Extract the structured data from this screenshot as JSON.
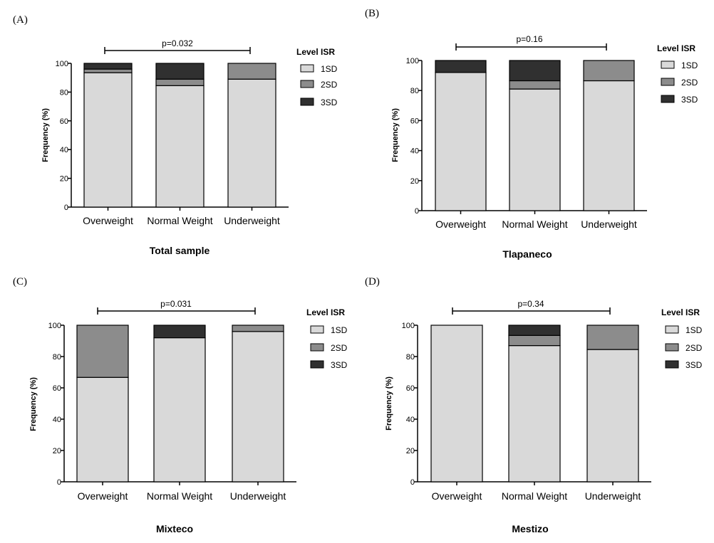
{
  "colors": {
    "1SD": "#d9d9d9",
    "2SD": "#8c8c8c",
    "3SD": "#303030",
    "axis": "#000000"
  },
  "chart_data": [
    {
      "type": "bar",
      "stacked": true,
      "panel": "(A)",
      "title": "Total sample",
      "ylabel": "Frequency (%)",
      "ylim": [
        0,
        100
      ],
      "yticks": [
        0,
        20,
        40,
        60,
        80,
        100
      ],
      "categories": [
        "Overweight",
        "Normal Weight",
        "Underweight"
      ],
      "legend_title": "Level ISR",
      "annotation": "p=0.032",
      "series": [
        {
          "name": "1SD",
          "values": [
            93.5,
            84.5,
            89
          ]
        },
        {
          "name": "2SD",
          "values": [
            2.5,
            4.5,
            11
          ]
        },
        {
          "name": "3SD",
          "values": [
            4,
            11,
            0
          ]
        }
      ]
    },
    {
      "type": "bar",
      "stacked": true,
      "panel": "(B)",
      "title": "Tlapaneco",
      "ylabel": "Frequency (%)",
      "ylim": [
        0,
        100
      ],
      "yticks": [
        0,
        20,
        40,
        60,
        80,
        100
      ],
      "categories": [
        "Overweight",
        "Normal Weight",
        "Underweight"
      ],
      "legend_title": "Level ISR",
      "annotation": "p=0.16",
      "series": [
        {
          "name": "1SD",
          "values": [
            92,
            81,
            86.5
          ]
        },
        {
          "name": "2SD",
          "values": [
            0,
            5.5,
            13.5
          ]
        },
        {
          "name": "3SD",
          "values": [
            8,
            13.5,
            0
          ]
        }
      ]
    },
    {
      "type": "bar",
      "stacked": true,
      "panel": "(C)",
      "title": "Mixteco",
      "ylabel": "Frequency (%)",
      "ylim": [
        0,
        100
      ],
      "yticks": [
        0,
        20,
        40,
        60,
        80,
        100
      ],
      "categories": [
        "Overweight",
        "Normal Weight",
        "Underweight"
      ],
      "legend_title": "Level ISR",
      "annotation": "p=0.031",
      "series": [
        {
          "name": "1SD",
          "values": [
            66.7,
            92,
            96
          ]
        },
        {
          "name": "2SD",
          "values": [
            33.3,
            0,
            4
          ]
        },
        {
          "name": "3SD",
          "values": [
            0,
            8,
            0
          ]
        }
      ]
    },
    {
      "type": "bar",
      "stacked": true,
      "panel": "(D)",
      "title": "Mestizo",
      "ylabel": "Frequency (%)",
      "ylim": [
        0,
        100
      ],
      "yticks": [
        0,
        20,
        40,
        60,
        80,
        100
      ],
      "categories": [
        "Overweight",
        "Normal Weight",
        "Underweight"
      ],
      "legend_title": "Level ISR",
      "annotation": "p=0.34",
      "series": [
        {
          "name": "1SD",
          "values": [
            100,
            87,
            84.5
          ]
        },
        {
          "name": "2SD",
          "values": [
            0,
            6.5,
            15.5
          ]
        },
        {
          "name": "3SD",
          "values": [
            0,
            6.5,
            0
          ]
        }
      ]
    }
  ]
}
